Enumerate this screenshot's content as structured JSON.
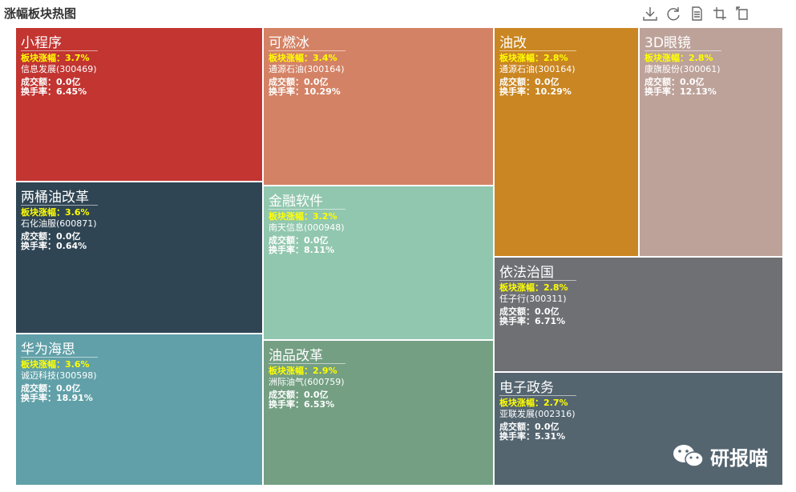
{
  "title": "涨幅板块热图",
  "toolbox": [
    {
      "icon": "download-icon"
    },
    {
      "icon": "refresh-icon"
    },
    {
      "icon": "data-view-icon"
    },
    {
      "icon": "zoom-icon"
    },
    {
      "icon": "zoom-reset-icon"
    }
  ],
  "labels": {
    "change": "板块涨幅：",
    "turnover_amount": "成交额：",
    "turnover_rate": "换手率："
  },
  "watermark": "研报喵",
  "chart_data": {
    "type": "treemap",
    "title": "涨幅板块热图",
    "nodes": [
      {
        "name": "小程序",
        "change": "3.7%",
        "stock": "信息发展(300469)",
        "amount": "0.0亿",
        "rate": "6.45%",
        "color": "#c23531"
      },
      {
        "name": "两桶油改革",
        "change": "3.6%",
        "stock": "石化油服(600871)",
        "amount": "0.0亿",
        "rate": "0.64%",
        "color": "#2f4554"
      },
      {
        "name": "华为海思",
        "change": "3.6%",
        "stock": "诚迈科技(300598)",
        "amount": "0.0亿",
        "rate": "18.91%",
        "color": "#61a0a8"
      },
      {
        "name": "可燃冰",
        "change": "3.4%",
        "stock": "通源石油(300164)",
        "amount": "0.0亿",
        "rate": "10.29%",
        "color": "#d48265"
      },
      {
        "name": "金融软件",
        "change": "3.2%",
        "stock": "南天信息(000948)",
        "amount": "0.0亿",
        "rate": "8.11%",
        "color": "#91c7ae"
      },
      {
        "name": "油品改革",
        "change": "2.9%",
        "stock": "洲际油气(600759)",
        "amount": "0.0亿",
        "rate": "6.53%",
        "color": "#749f83"
      },
      {
        "name": "油改",
        "change": "2.8%",
        "stock": "通源石油(300164)",
        "amount": "0.0亿",
        "rate": "10.29%",
        "color": "#ca8622"
      },
      {
        "name": "3D眼镜",
        "change": "2.8%",
        "stock": "康旗股份(300061)",
        "amount": "0.0亿",
        "rate": "12.13%",
        "color": "#bda29a"
      },
      {
        "name": "依法治国",
        "change": "2.8%",
        "stock": "任子行(300311)",
        "amount": "0.0亿",
        "rate": "6.71%",
        "color": "#6e7074"
      },
      {
        "name": "电子政务",
        "change": "2.7%",
        "stock": "亚联发展(002316)",
        "amount": "0.0亿",
        "rate": "5.31%",
        "color": "#546570"
      }
    ]
  }
}
